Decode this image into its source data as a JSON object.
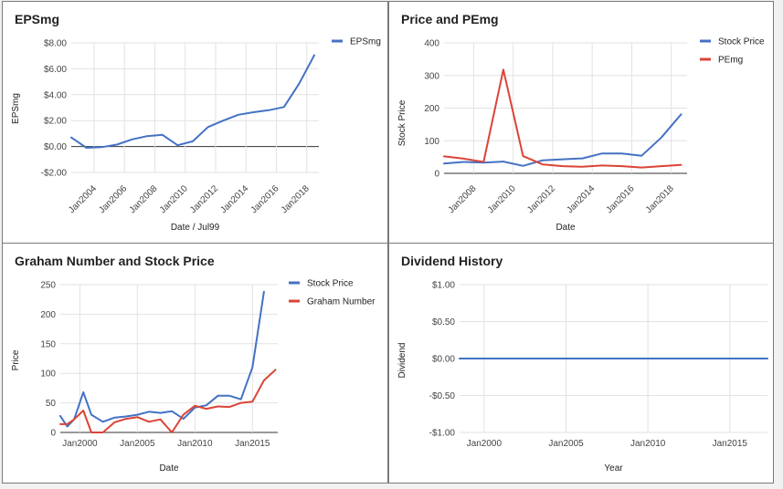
{
  "colors": {
    "blue": "#4472c4",
    "red": "#db4437"
  },
  "charts": [
    {
      "title": "EPSmg",
      "xlabel": "Date / Jul99",
      "ylabel": "EPSmg",
      "chart_data": {
        "type": "line",
        "title": "EPSmg",
        "xlabel": "Date / Jul99",
        "ylabel": "EPSmg",
        "x": [
          2002.5,
          2003.5,
          2004.5,
          2005.5,
          2006.5,
          2007.5,
          2008.5,
          2009.5,
          2010.5,
          2011.5,
          2012.5,
          2013.5,
          2014.5,
          2015.5,
          2016.5,
          2017.5,
          2018.5
        ],
        "xlim": [
          2002.5,
          2018.8
        ],
        "xticks": [
          2004,
          2006,
          2008,
          2010,
          2012,
          2014,
          2016,
          2018
        ],
        "xtick_labels": [
          "Jan2004",
          "Jan2006",
          "Jan2008",
          "Jan2010",
          "Jan2012",
          "Jan2014",
          "Jan2016",
          "Jan2018"
        ],
        "ylim": [
          -2,
          8
        ],
        "yticks": [
          -2,
          0,
          2,
          4,
          6,
          8
        ],
        "ytick_labels": [
          "-$2.00",
          "$0.00",
          "$2.00",
          "$4.00",
          "$6.00",
          "$8.00"
        ],
        "grid": true,
        "legend": "top-right",
        "series": [
          {
            "name": "EPSmg",
            "color": "#4472c4",
            "values": [
              0.7,
              -0.1,
              -0.05,
              0.15,
              0.55,
              0.8,
              0.9,
              0.1,
              0.4,
              1.5,
              2.0,
              2.45,
              2.65,
              2.8,
              3.05,
              4.85,
              7.05
            ]
          }
        ]
      }
    },
    {
      "title": "Price and PEmg",
      "xlabel": "Date",
      "ylabel": "Stock Price",
      "chart_data": {
        "type": "line",
        "title": "Price and PEmg",
        "xlabel": "Date",
        "ylabel": "Stock Price",
        "x": [
          2006.5,
          2007.5,
          2008.5,
          2009.5,
          2010.5,
          2011.5,
          2012.5,
          2013.5,
          2014.5,
          2015.5,
          2016.5,
          2017.5,
          2018.5
        ],
        "xlim": [
          2006.5,
          2018.8
        ],
        "xticks": [
          2008,
          2010,
          2012,
          2014,
          2016,
          2018
        ],
        "xtick_labels": [
          "Jan2008",
          "Jan2010",
          "Jan2012",
          "Jan2014",
          "Jan2016",
          "Jan2018"
        ],
        "ylim": [
          0,
          400
        ],
        "yticks": [
          0,
          100,
          200,
          300,
          400
        ],
        "ytick_labels": [
          "0",
          "100",
          "200",
          "300",
          "400"
        ],
        "grid": true,
        "legend": "top-right",
        "series": [
          {
            "name": "Stock Price",
            "color": "#4472c4",
            "values": [
              30,
              35,
              33,
              36,
              23,
              40,
              43,
              46,
              61,
              61,
              54,
              110,
              181
            ]
          },
          {
            "name": "PEmg",
            "color": "#db4437",
            "values": [
              52,
              45,
              35,
              318,
              53,
              27,
              22,
              20,
              24,
              22,
              18,
              22,
              26
            ]
          }
        ]
      }
    },
    {
      "title": "Graham Number and Stock Price",
      "xlabel": "Date",
      "ylabel": "Price",
      "chart_data": {
        "type": "line",
        "title": "Graham Number and Stock Price",
        "xlabel": "Date",
        "ylabel": "Price",
        "x": [
          1998.3,
          1998.9,
          1999.5,
          2000.3,
          2001.0,
          2002.0,
          2003.0,
          2004.0,
          2005.0,
          2006.0,
          2007.0,
          2008.0,
          2009.0,
          2010.0,
          2011.0,
          2012.0,
          2013.0,
          2014.0,
          2015.0,
          2016.0,
          2017.0
        ],
        "xlim": [
          1998.3,
          2017.2
        ],
        "xticks": [
          2000,
          2005,
          2010,
          2015
        ],
        "xtick_labels": [
          "Jan2000",
          "Jan2005",
          "Jan2010",
          "Jan2015"
        ],
        "ylim": [
          0,
          250
        ],
        "yticks": [
          0,
          50,
          100,
          150,
          200,
          250
        ],
        "ytick_labels": [
          "0",
          "50",
          "100",
          "150",
          "200",
          "250"
        ],
        "grid": true,
        "legend": "top-right",
        "series": [
          {
            "name": "Stock Price",
            "color": "#4472c4",
            "values": [
              28,
              10,
              22,
              68,
              30,
              18,
              25,
              27,
              30,
              35,
              33,
              36,
              23,
              42,
              46,
              62,
              62,
              56,
              110,
              238,
              null
            ]
          },
          {
            "name": "Graham Number",
            "color": "#db4437",
            "values": [
              14,
              14,
              22,
              37,
              0,
              0,
              17,
              23,
              26,
              18,
              22,
              0,
              30,
              45,
              40,
              44,
              43,
              50,
              52,
              88,
              106
            ]
          }
        ]
      }
    },
    {
      "title": "Dividend History",
      "xlabel": "Year",
      "ylabel": "Dividend",
      "chart_data": {
        "type": "line",
        "title": "Dividend History",
        "xlabel": "Year",
        "ylabel": "Dividend",
        "x": [
          1998.5,
          2017.3
        ],
        "xlim": [
          1998.5,
          2017.3
        ],
        "xticks": [
          2000,
          2005,
          2010,
          2015
        ],
        "xtick_labels": [
          "Jan2000",
          "Jan2005",
          "Jan2010",
          "Jan2015"
        ],
        "ylim": [
          -1,
          1
        ],
        "yticks": [
          -1,
          -0.5,
          0,
          0.5,
          1
        ],
        "ytick_labels": [
          "-$1.00",
          "-$0.50",
          "$0.00",
          "$0.50",
          "$1.00"
        ],
        "grid": true,
        "legend": "none",
        "series": [
          {
            "color": "#4472c4",
            "values": [
              0,
              0
            ]
          }
        ]
      }
    }
  ]
}
